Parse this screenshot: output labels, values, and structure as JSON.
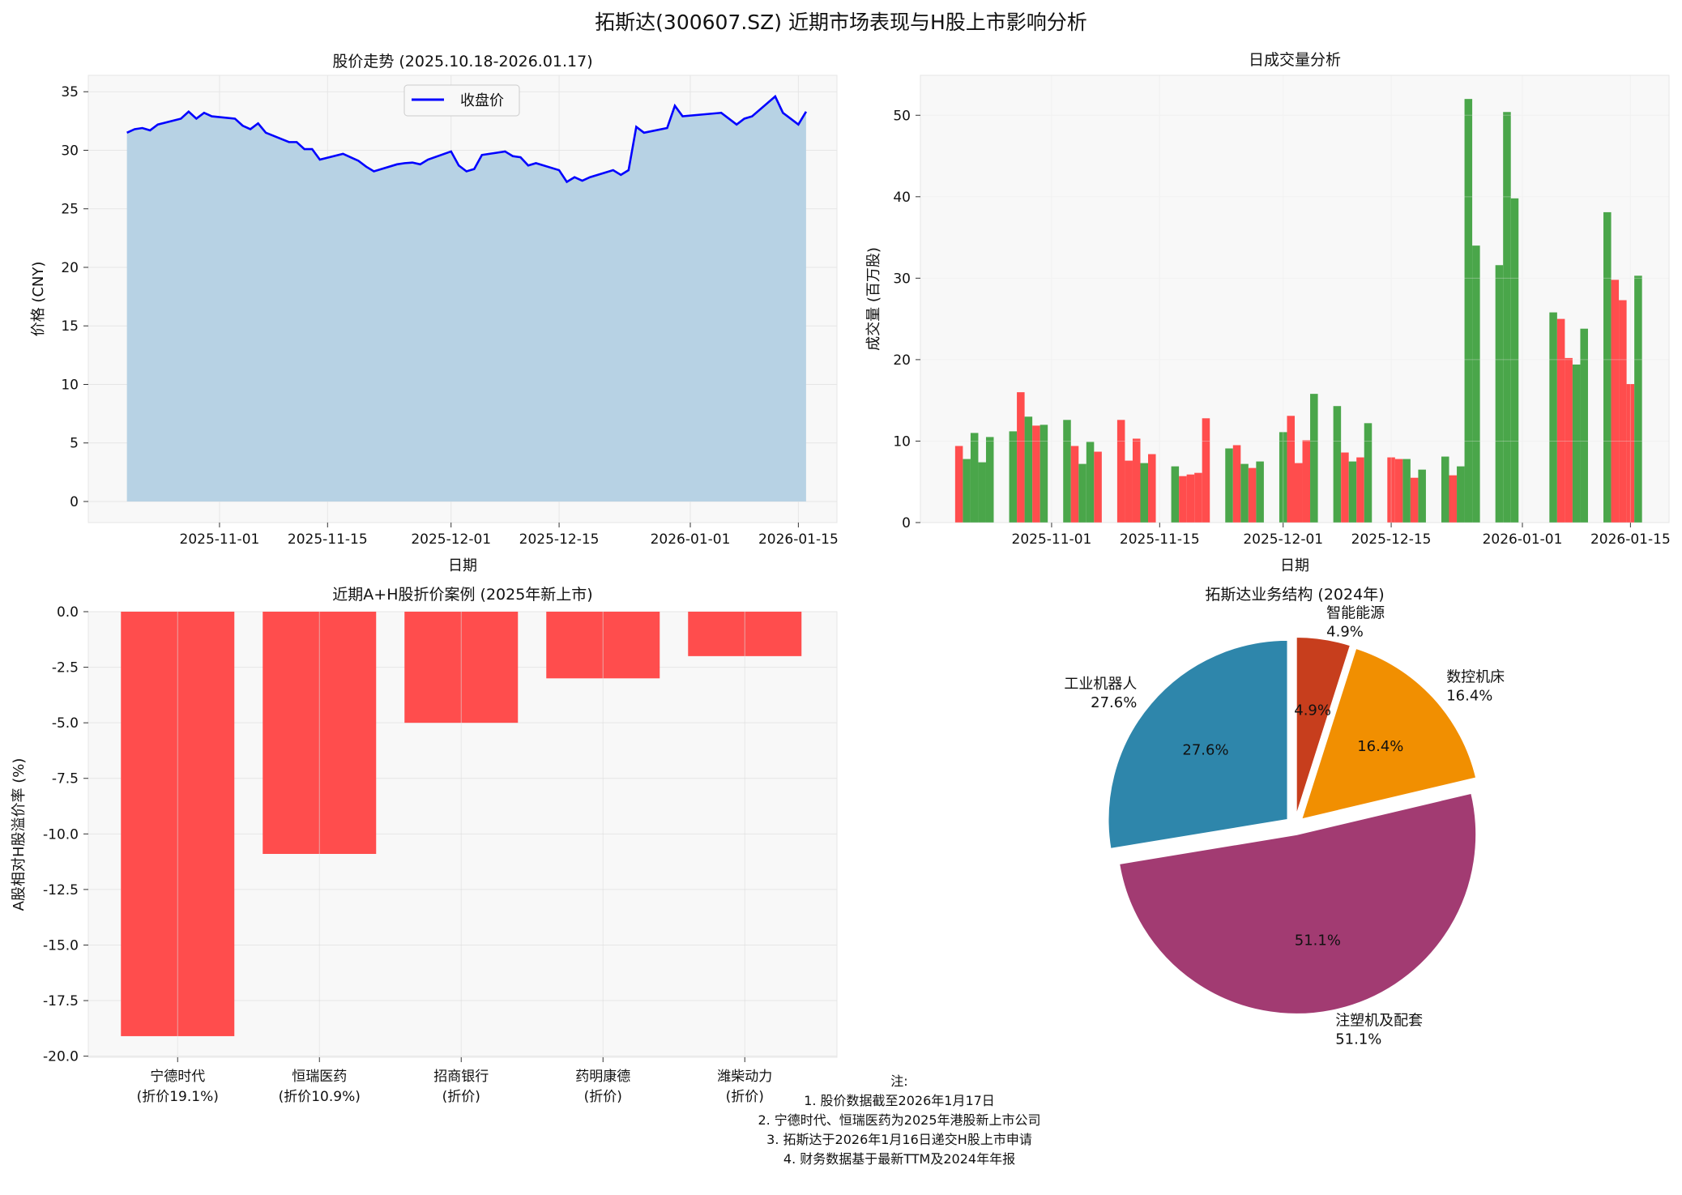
{
  "title": "拓斯达(300607.SZ) 近期市场表现与H股上市影响分析",
  "colors": {
    "line": "#0000ff",
    "fill": "#b7d2e4",
    "up": "#ff4d4d",
    "down": "#4aa64a",
    "axes_bg": "#f8f8f8",
    "grid": "#e6e6e6"
  },
  "notes": {
    "header": "注:",
    "lines": [
      "1. 股价数据截至2026年1月17日",
      "2. 宁德时代、恒瑞医药为2025年港股新上市公司",
      "3. 拓斯达于2026年1月16日递交H股上市申请",
      "4. 财务数据基于最新TTM及2024年年报"
    ]
  },
  "chart_data": [
    {
      "type": "area",
      "title": "股价走势 (2025.10.18-2026.01.17)",
      "xlabel": "日期",
      "ylabel": "价格 (CNY)",
      "legend": {
        "entries": [
          "收盘价"
        ],
        "placement": "upper-center"
      },
      "grid": true,
      "xlim": [
        "2025-10-15",
        "2026-01-20"
      ],
      "ylim": [
        -1.8,
        36.4
      ],
      "xticks": [
        "2025-11-01",
        "2025-11-15",
        "2025-12-01",
        "2025-12-15",
        "2026-01-01",
        "2026-01-15"
      ],
      "yticks": [
        0,
        5,
        10,
        15,
        20,
        25,
        30,
        35
      ],
      "series": [
        {
          "name": "收盘价",
          "x": [
            "2025-10-20",
            "2025-10-21",
            "2025-10-22",
            "2025-10-23",
            "2025-10-24",
            "2025-10-27",
            "2025-10-28",
            "2025-10-29",
            "2025-10-30",
            "2025-10-31",
            "2025-11-03",
            "2025-11-04",
            "2025-11-05",
            "2025-11-06",
            "2025-11-07",
            "2025-11-10",
            "2025-11-11",
            "2025-11-12",
            "2025-11-13",
            "2025-11-14",
            "2025-11-17",
            "2025-11-18",
            "2025-11-19",
            "2025-11-20",
            "2025-11-21",
            "2025-11-24",
            "2025-11-25",
            "2025-11-26",
            "2025-11-27",
            "2025-11-28",
            "2025-12-01",
            "2025-12-02",
            "2025-12-03",
            "2025-12-04",
            "2025-12-05",
            "2025-12-08",
            "2025-12-09",
            "2025-12-10",
            "2025-12-11",
            "2025-12-12",
            "2025-12-15",
            "2025-12-16",
            "2025-12-17",
            "2025-12-18",
            "2025-12-19",
            "2025-12-22",
            "2025-12-23",
            "2025-12-24",
            "2025-12-25",
            "2025-12-26",
            "2025-12-29",
            "2025-12-30",
            "2025-12-31",
            "2026-01-05",
            "2026-01-06",
            "2026-01-07",
            "2026-01-08",
            "2026-01-09",
            "2026-01-12",
            "2026-01-13",
            "2026-01-14",
            "2026-01-15",
            "2026-01-16"
          ],
          "y": [
            31.5,
            31.8,
            31.9,
            31.7,
            32.2,
            32.7,
            33.3,
            32.7,
            33.2,
            32.9,
            32.7,
            32.1,
            31.8,
            32.3,
            31.5,
            30.7,
            30.7,
            30.1,
            30.1,
            29.2,
            29.7,
            29.4,
            29.1,
            28.6,
            28.2,
            28.8,
            28.9,
            28.95,
            28.8,
            29.2,
            29.9,
            28.7,
            28.2,
            28.4,
            29.6,
            29.9,
            29.5,
            29.4,
            28.7,
            28.9,
            28.3,
            27.3,
            27.7,
            27.4,
            27.7,
            28.3,
            27.9,
            28.3,
            32.0,
            31.5,
            31.9,
            33.8,
            32.9,
            33.2,
            32.7,
            32.2,
            32.7,
            32.9,
            34.6,
            33.2,
            32.7,
            32.2,
            33.3
          ]
        }
      ]
    },
    {
      "type": "bar",
      "title": "日成交量分析",
      "xlabel": "日期",
      "ylabel": "成交量 (百万股)",
      "grid": true,
      "xlim": [
        "2025-10-15",
        "2026-01-20"
      ],
      "ylim": [
        0,
        54.9
      ],
      "xticks": [
        "2025-11-01",
        "2025-11-15",
        "2025-12-01",
        "2025-12-15",
        "2026-01-01",
        "2026-01-15"
      ],
      "yticks": [
        0,
        10,
        20,
        30,
        40,
        50
      ],
      "values": [
        9.4,
        7.8,
        11.0,
        7.4,
        10.5,
        11.2,
        16.0,
        13.0,
        11.9,
        12.0,
        12.6,
        9.4,
        7.2,
        9.9,
        8.7,
        12.6,
        7.6,
        10.3,
        7.3,
        8.4,
        6.9,
        5.7,
        5.9,
        6.1,
        12.8,
        9.1,
        9.5,
        7.2,
        6.7,
        7.5,
        11.1,
        13.1,
        7.3,
        10.1,
        15.8,
        14.3,
        8.6,
        7.5,
        8.0,
        12.2,
        8.0,
        7.8,
        7.8,
        5.5,
        6.5,
        8.1,
        5.8,
        6.9,
        52.0,
        34.0,
        31.6,
        50.4,
        39.8,
        25.8,
        25.0,
        20.2,
        19.4,
        23.8,
        38.1,
        29.8,
        27.3,
        17.0,
        30.3
      ],
      "bar_colors": [
        "up",
        "down",
        "down",
        "down",
        "down",
        "down",
        "up",
        "down",
        "up",
        "down",
        "down",
        "up",
        "down",
        "down",
        "up",
        "up",
        "up",
        "up",
        "down",
        "up",
        "down",
        "up",
        "up",
        "up",
        "up",
        "down",
        "up",
        "down",
        "up",
        "down",
        "down",
        "up",
        "up",
        "up",
        "down",
        "down",
        "up",
        "down",
        "up",
        "down",
        "up",
        "up",
        "down",
        "up",
        "down",
        "down",
        "up",
        "down",
        "down",
        "down",
        "down",
        "down",
        "down",
        "down",
        "up",
        "up",
        "down",
        "down",
        "down",
        "up",
        "up",
        "up",
        "down"
      ]
    },
    {
      "type": "bar",
      "title": "近期A+H股折价案例 (2025年新上市)",
      "xlabel": "",
      "ylabel": "A股相对H股溢价率 (%)",
      "grid": true,
      "ylim": [
        -20.05,
        0
      ],
      "yticks": [
        0.0,
        -2.5,
        -5.0,
        -7.5,
        -10.0,
        -12.5,
        -15.0,
        -17.5,
        -20.0
      ],
      "categories": [
        [
          "宁德时代",
          "(折价19.1%)"
        ],
        [
          "恒瑞医药",
          "(折价10.9%)"
        ],
        [
          "招商银行",
          "(折价)"
        ],
        [
          "药明康德",
          "(折价)"
        ],
        [
          "潍柴动力",
          "(折价)"
        ]
      ],
      "values": [
        -19.1,
        -10.9,
        -5.0,
        -3.0,
        -2.0
      ],
      "bar_color": "#ff4d4d"
    },
    {
      "type": "pie",
      "title": "拓斯达业务结构 (2024年)",
      "start_angle": 90,
      "labels": [
        "工业机器人",
        "注塑机及配套",
        "数控机床",
        "智能能源"
      ],
      "values": [
        27.6,
        51.1,
        16.4,
        4.9
      ],
      "value_labels": [
        "27.6%",
        "51.1%",
        "16.4%",
        "4.9%"
      ],
      "colors": [
        "#2e86ab",
        "#a23b72",
        "#f18f01",
        "#c73e1d"
      ]
    }
  ]
}
